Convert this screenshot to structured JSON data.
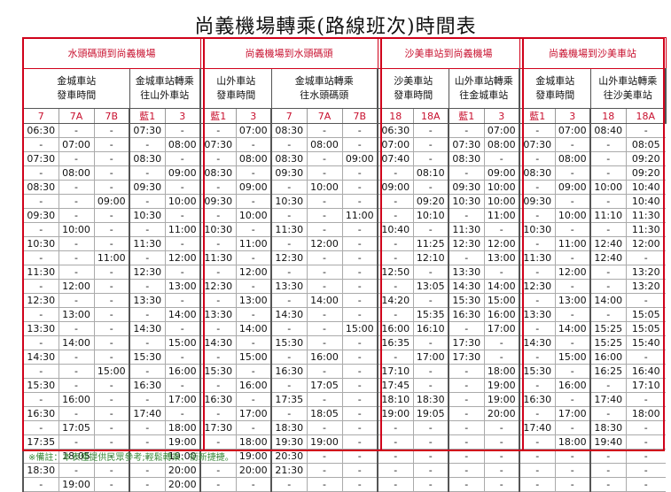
{
  "title": "尚義機場轉乘(路線班次)時間表",
  "groups": [
    {
      "title": "水頭碼頭到尚義機場",
      "blocks": [
        {
          "lines": [
            "金城車站",
            "發車時間"
          ],
          "routes": [
            "7",
            "7A",
            "7B"
          ]
        },
        {
          "lines": [
            "金城車站轉乘",
            "往山外車站"
          ],
          "routes": [
            "藍1",
            "3"
          ]
        }
      ]
    },
    {
      "title": "尚義機場到水頭碼頭",
      "blocks": [
        {
          "lines": [
            "山外車站",
            "發車時間"
          ],
          "routes": [
            "藍1",
            "3"
          ]
        },
        {
          "lines": [
            "金城車站轉乘",
            "往水頭碼頭"
          ],
          "routes": [
            "7",
            "7A",
            "7B"
          ]
        }
      ]
    },
    {
      "title": "沙美車站到尚義機場",
      "blocks": [
        {
          "lines": [
            "沙美車站",
            "發車時間"
          ],
          "routes": [
            "18",
            "18A"
          ]
        },
        {
          "lines": [
            "山外車站轉乘",
            "往金城車站"
          ],
          "routes": [
            "藍1",
            "3"
          ]
        }
      ]
    },
    {
      "title": "尚義機場到沙美車站",
      "blocks": [
        {
          "lines": [
            "金城車站",
            "發車時間"
          ],
          "routes": [
            "藍1",
            "3"
          ]
        },
        {
          "lines": [
            "山外車站轉乘",
            "往沙美車站"
          ],
          "routes": [
            "18",
            "18A"
          ]
        }
      ]
    }
  ],
  "rows": [
    [
      "06:30",
      "-",
      "-",
      "07:30",
      "-",
      "-",
      "07:00",
      "08:30",
      "-",
      "-",
      "06:30",
      "-",
      "-",
      "07:00",
      "-",
      "07:00",
      "08:40",
      "-"
    ],
    [
      "-",
      "07:00",
      "-",
      "-",
      "08:00",
      "07:30",
      "-",
      "-",
      "08:00",
      "-",
      "07:00",
      "-",
      "07:30",
      "08:00",
      "07:30",
      "-",
      "-",
      "08:05"
    ],
    [
      "07:30",
      "-",
      "-",
      "08:30",
      "-",
      "-",
      "08:00",
      "08:30",
      "-",
      "09:00",
      "07:40",
      "-",
      "08:30",
      "-",
      "-",
      "08:00",
      "-",
      "09:20"
    ],
    [
      "-",
      "08:00",
      "-",
      "-",
      "09:00",
      "08:30",
      "-",
      "09:30",
      "-",
      "-",
      "-",
      "08:10",
      "-",
      "09:00",
      "08:30",
      "-",
      "-",
      "09:20"
    ],
    [
      "08:30",
      "-",
      "-",
      "09:30",
      "-",
      "-",
      "09:00",
      "-",
      "10:00",
      "-",
      "09:00",
      "-",
      "09:30",
      "10:00",
      "-",
      "09:00",
      "10:00",
      "10:40"
    ],
    [
      "-",
      "-",
      "09:00",
      "-",
      "10:00",
      "09:30",
      "-",
      "10:30",
      "-",
      "-",
      "-",
      "09:20",
      "10:30",
      "10:00",
      "09:30",
      "-",
      "-",
      "10:40"
    ],
    [
      "09:30",
      "-",
      "-",
      "10:30",
      "-",
      "-",
      "10:00",
      "-",
      "-",
      "11:00",
      "-",
      "10:10",
      "-",
      "11:00",
      "-",
      "10:00",
      "11:10",
      "11:30"
    ],
    [
      "-",
      "10:00",
      "-",
      "-",
      "11:00",
      "10:30",
      "-",
      "11:30",
      "-",
      "-",
      "10:40",
      "-",
      "11:30",
      "-",
      "10:30",
      "-",
      "-",
      "11:30"
    ],
    [
      "10:30",
      "-",
      "-",
      "11:30",
      "-",
      "-",
      "11:00",
      "-",
      "12:00",
      "-",
      "-",
      "11:25",
      "12:30",
      "12:00",
      "-",
      "11:00",
      "12:40",
      "12:00"
    ],
    [
      "-",
      "-",
      "11:00",
      "-",
      "12:00",
      "11:30",
      "-",
      "12:30",
      "-",
      "-",
      "-",
      "12:10",
      "-",
      "13:00",
      "11:30",
      "-",
      "12:40",
      "-"
    ],
    [
      "11:30",
      "-",
      "-",
      "12:30",
      "-",
      "-",
      "12:00",
      "-",
      "-",
      "-",
      "12:50",
      "-",
      "13:30",
      "-",
      "-",
      "12:00",
      "-",
      "13:20"
    ],
    [
      "-",
      "12:00",
      "-",
      "-",
      "13:00",
      "12:30",
      "-",
      "13:30",
      "-",
      "-",
      "-",
      "13:05",
      "14:30",
      "14:00",
      "12:30",
      "-",
      "-",
      "13:20"
    ],
    [
      "12:30",
      "-",
      "-",
      "13:30",
      "-",
      "-",
      "13:00",
      "-",
      "14:00",
      "-",
      "14:20",
      "-",
      "15:30",
      "15:00",
      "-",
      "13:00",
      "14:00",
      "-"
    ],
    [
      "-",
      "13:00",
      "-",
      "-",
      "14:00",
      "13:30",
      "-",
      "14:30",
      "-",
      "-",
      "-",
      "15:35",
      "16:30",
      "16:00",
      "13:30",
      "-",
      "-",
      "15:05"
    ],
    [
      "13:30",
      "-",
      "-",
      "14:30",
      "-",
      "-",
      "14:00",
      "-",
      "-",
      "15:00",
      "16:00",
      "16:10",
      "-",
      "17:00",
      "-",
      "14:00",
      "15:25",
      "15:05"
    ],
    [
      "-",
      "14:00",
      "-",
      "-",
      "15:00",
      "14:30",
      "-",
      "15:30",
      "-",
      "-",
      "16:35",
      "-",
      "17:30",
      "-",
      "14:30",
      "-",
      "15:25",
      "15:40"
    ],
    [
      "14:30",
      "-",
      "-",
      "15:30",
      "-",
      "-",
      "15:00",
      "-",
      "16:00",
      "-",
      "-",
      "17:00",
      "17:30",
      "-",
      "-",
      "15:00",
      "16:00",
      "-"
    ],
    [
      "-",
      "-",
      "15:00",
      "-",
      "16:00",
      "15:30",
      "-",
      "16:30",
      "-",
      "-",
      "17:10",
      "-",
      "-",
      "18:00",
      "15:30",
      "-",
      "16:25",
      "16:40"
    ],
    [
      "15:30",
      "-",
      "-",
      "16:30",
      "-",
      "-",
      "16:00",
      "-",
      "17:05",
      "-",
      "17:45",
      "-",
      "-",
      "19:00",
      "-",
      "16:00",
      "-",
      "17:10"
    ],
    [
      "-",
      "16:00",
      "-",
      "-",
      "17:00",
      "16:30",
      "-",
      "17:35",
      "-",
      "-",
      "18:10",
      "18:30",
      "-",
      "19:00",
      "16:30",
      "-",
      "17:40",
      "-"
    ],
    [
      "16:30",
      "-",
      "-",
      "17:40",
      "-",
      "-",
      "17:00",
      "-",
      "18:05",
      "-",
      "19:00",
      "19:05",
      "-",
      "20:00",
      "-",
      "17:00",
      "-",
      "18:00"
    ],
    [
      "-",
      "17:05",
      "-",
      "-",
      "18:00",
      "17:30",
      "-",
      "18:30",
      "-",
      "-",
      "-",
      "-",
      "-",
      "-",
      "17:40",
      "-",
      "18:30",
      "-"
    ],
    [
      "17:35",
      "-",
      "-",
      "-",
      "19:00",
      "-",
      "18:00",
      "19:30",
      "19:00",
      "-",
      "-",
      "-",
      "-",
      "-",
      "-",
      "18:00",
      "19:40",
      "-"
    ],
    [
      "-",
      "18:05",
      "-",
      "-",
      "19:00",
      "-",
      "19:00",
      "20:30",
      "-",
      "-",
      "-",
      "-",
      "-",
      "-",
      "-",
      "-",
      "-",
      "-"
    ],
    [
      "18:30",
      "-",
      "-",
      "-",
      "20:00",
      "-",
      "20:00",
      "21:30",
      "-",
      "-",
      "-",
      "-",
      "-",
      "-",
      "-",
      "-",
      "-",
      "-"
    ],
    [
      "-",
      "19:00",
      "-",
      "-",
      "20:00",
      "-",
      "-",
      "-",
      "-",
      "-",
      "-",
      "-",
      "-",
      "-",
      "-",
      "-",
      "-",
      "-"
    ]
  ],
  "note": "※備註：本表僅提供民眾參考;輕鬆轉乘、銜新捷捷。",
  "colors": {
    "frame": "#d0021b",
    "route_text": "#c8102e",
    "note_text": "#3a8a3a"
  }
}
